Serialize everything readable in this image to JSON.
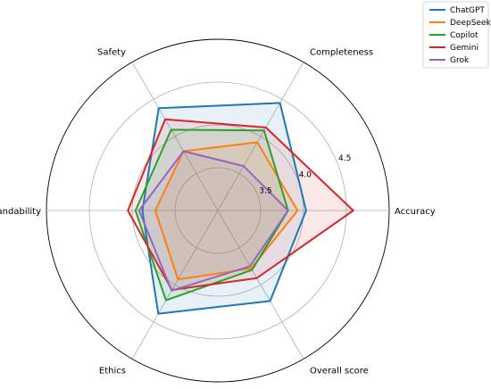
{
  "chart_data": {
    "type": "radar",
    "axes": [
      "Accuracy",
      "Completeness",
      "Safety",
      "Understandability",
      "Ethics",
      "Overall score"
    ],
    "rlim": [
      3.0,
      5.0
    ],
    "rticks": [
      3.5,
      4.0,
      4.5
    ],
    "rtick_labels": [
      "3.5",
      "4.0",
      "4.5"
    ],
    "grid": true,
    "legend_position": "top-right",
    "series": [
      {
        "name": "ChatGPT",
        "color": "#1f77b4",
        "values": [
          4.03,
          4.45,
          4.38,
          3.88,
          4.39,
          4.22
        ]
      },
      {
        "name": "DeepSeek",
        "color": "#ff7f0e",
        "values": [
          3.93,
          3.92,
          3.8,
          3.73,
          3.93,
          3.78
        ]
      },
      {
        "name": "Copilot",
        "color": "#2ca02c",
        "values": [
          3.82,
          4.08,
          4.09,
          3.96,
          4.21,
          3.8
        ]
      },
      {
        "name": "Gemini",
        "color": "#d62728",
        "values": [
          4.58,
          4.12,
          4.23,
          4.05,
          4.07,
          3.91
        ]
      },
      {
        "name": "Grok",
        "color": "#9467bd",
        "values": [
          3.82,
          3.6,
          3.8,
          3.92,
          4.08,
          3.75
        ]
      }
    ]
  }
}
